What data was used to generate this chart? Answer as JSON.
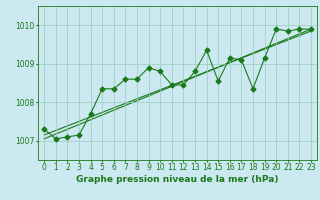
{
  "title": "Graphe pression niveau de la mer (hPa)",
  "bg_color": "#cce8f0",
  "line_color": "#1a7a1a",
  "grid_color": "#99ccbb",
  "xlim": [
    -0.5,
    23.5
  ],
  "ylim": [
    1006.5,
    1010.5
  ],
  "yticks": [
    1007,
    1008,
    1009,
    1010
  ],
  "xticks": [
    0,
    1,
    2,
    3,
    4,
    5,
    6,
    7,
    8,
    9,
    10,
    11,
    12,
    13,
    14,
    15,
    16,
    17,
    18,
    19,
    20,
    21,
    22,
    23
  ],
  "main_series": [
    [
      0,
      1007.3
    ],
    [
      1,
      1007.05
    ],
    [
      2,
      1007.1
    ],
    [
      3,
      1007.15
    ],
    [
      4,
      1007.7
    ],
    [
      5,
      1008.35
    ],
    [
      6,
      1008.35
    ],
    [
      7,
      1008.6
    ],
    [
      8,
      1008.6
    ],
    [
      9,
      1008.9
    ],
    [
      10,
      1008.8
    ],
    [
      11,
      1008.45
    ],
    [
      12,
      1008.45
    ],
    [
      13,
      1008.8
    ],
    [
      14,
      1009.35
    ],
    [
      15,
      1008.55
    ],
    [
      16,
      1009.15
    ],
    [
      17,
      1009.1
    ],
    [
      18,
      1008.35
    ],
    [
      19,
      1009.15
    ],
    [
      20,
      1009.9
    ],
    [
      21,
      1009.85
    ],
    [
      22,
      1009.9
    ],
    [
      23,
      1009.9
    ]
  ],
  "trend_line1": [
    [
      0,
      1007.05
    ],
    [
      23,
      1009.9
    ]
  ],
  "trend_line2": [
    [
      0,
      1007.15
    ],
    [
      23,
      1009.85
    ]
  ],
  "marker_size": 2.5,
  "marker_style": "D",
  "title_fontsize": 6.5,
  "tick_fontsize": 5.5
}
